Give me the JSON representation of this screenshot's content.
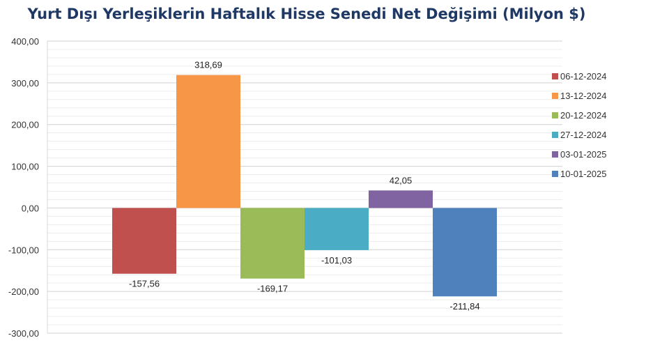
{
  "chart_data": {
    "type": "bar",
    "title": "Yurt Dışı Yerleşiklerin Haftalık Hisse Senedi Net Değişimi (Milyon $)",
    "xlabel": "",
    "ylabel": "",
    "ylim": [
      -300,
      400
    ],
    "y_ticks": [
      "400,00",
      "300,00",
      "200,00",
      "100,00",
      "0,00",
      "-100,00",
      "-200,00",
      "-300,00"
    ],
    "grid": true,
    "legend_position": "right",
    "series": [
      {
        "name": "06-12-2024",
        "value": -157.56,
        "label": "-157,56",
        "color": "#c0504d"
      },
      {
        "name": "13-12-2024",
        "value": 318.69,
        "label": "318,69",
        "color": "#f79646"
      },
      {
        "name": "20-12-2024",
        "value": -169.17,
        "label": "-169,17",
        "color": "#9bbb59"
      },
      {
        "name": "27-12-2024",
        "value": -101.03,
        "label": "-101,03",
        "color": "#4bacc6"
      },
      {
        "name": "03-01-2025",
        "value": 42.05,
        "label": "42,05",
        "color": "#8064a2"
      },
      {
        "name": "10-01-2025",
        "value": -211.84,
        "label": "-211,84",
        "color": "#4f81bd"
      }
    ]
  }
}
